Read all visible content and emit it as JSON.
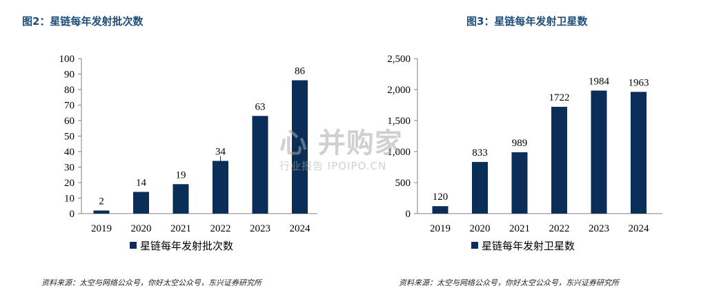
{
  "chart_data": [
    {
      "type": "bar",
      "title": "图2：星链每年发射批次数",
      "categories": [
        "2019",
        "2020",
        "2021",
        "2022",
        "2023",
        "2024"
      ],
      "series": [
        {
          "name": "星链每年发射批次数",
          "values": [
            2,
            14,
            19,
            34,
            63,
            86
          ]
        }
      ],
      "data_labels": [
        "2",
        "14",
        "19",
        "34",
        "63",
        "86"
      ],
      "ylim": [
        0,
        100
      ],
      "yticks": [
        0,
        10,
        20,
        30,
        40,
        50,
        60,
        70,
        80,
        90,
        100
      ],
      "ytick_labels": [
        "0",
        "10",
        "20",
        "30",
        "40",
        "50",
        "60",
        "70",
        "80",
        "90",
        "100"
      ],
      "grid": false,
      "legend": "bottom",
      "bar_color": "#0b2e59",
      "source": "资料来源：太空与网络公众号，你好太空公众号，东兴证券研究所"
    },
    {
      "type": "bar",
      "title": "图3：星链每年发射卫星数",
      "categories": [
        "2019",
        "2020",
        "2021",
        "2022",
        "2023",
        "2024"
      ],
      "series": [
        {
          "name": "星链每年发射卫星数",
          "values": [
            120,
            833,
            989,
            1722,
            1984,
            1963
          ]
        }
      ],
      "data_labels": [
        "120",
        "833",
        "989",
        "1722",
        "1984",
        "1963"
      ],
      "ylim": [
        0,
        2500
      ],
      "yticks": [
        0,
        500,
        1000,
        1500,
        2000,
        2500
      ],
      "ytick_labels": [
        "0",
        "500",
        "1,000",
        "1,500",
        "2,000",
        "2,500"
      ],
      "grid": false,
      "legend": "bottom",
      "bar_color": "#0b2e59",
      "source": "资料来源：太空与网络公众号，你好太空公众号，东兴证券研究所"
    }
  ],
  "watermark": {
    "main": "心 并购家",
    "sub": "行业报告 IPOIPO.CN"
  }
}
